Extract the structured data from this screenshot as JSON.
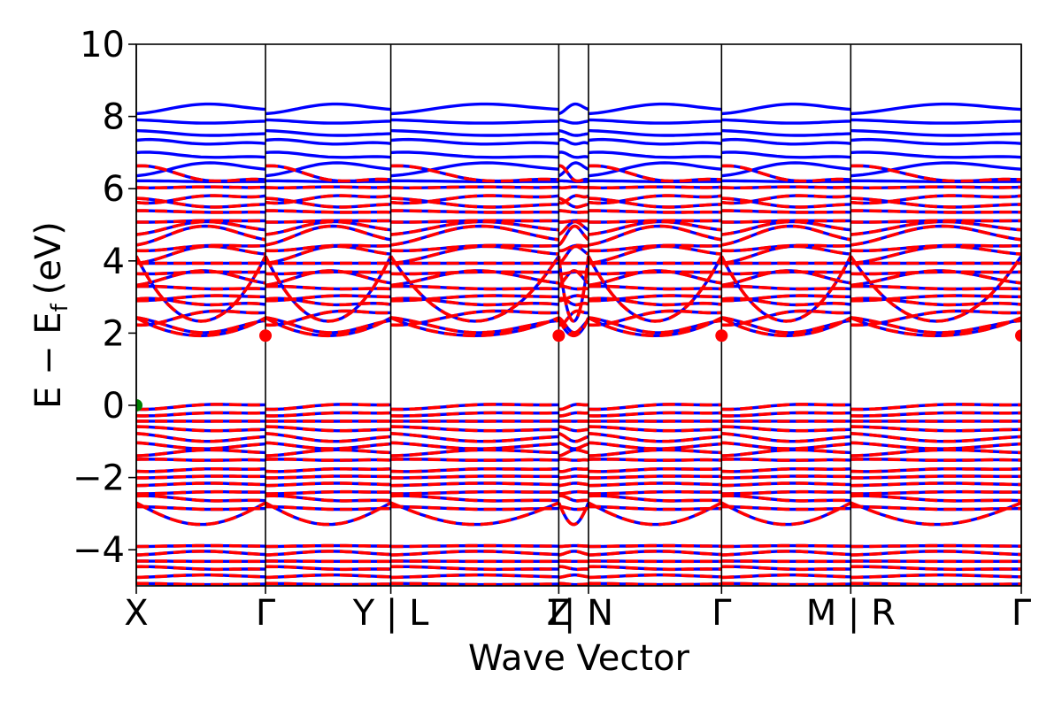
{
  "chart_data": {
    "type": "line",
    "title": "",
    "xlabel": "Wave Vector",
    "ylabel": "E − E",
    "ylabel_sub": "f",
    "ylabel_unit": "(eV)",
    "ylim": [
      -5,
      10
    ],
    "yticks": [
      -4,
      -2,
      0,
      2,
      4,
      6,
      8,
      10
    ],
    "ytick_labels": [
      "−4",
      "−2",
      "0",
      "2",
      "4",
      "6",
      "8",
      "10"
    ],
    "grid": false,
    "legend": "none",
    "xlim": [
      0,
      6.85
    ],
    "kpath_ticks": [
      {
        "x": 0.0,
        "label": "X"
      },
      {
        "x": 1.0,
        "label": "Γ"
      },
      {
        "x": 1.97,
        "label": "Y | L"
      },
      {
        "x": 3.27,
        "label": "Γ"
      },
      {
        "x": 3.27,
        "label": "Z"
      },
      {
        "x": 3.5,
        "label": "| N"
      },
      {
        "x": 4.53,
        "label": "Γ"
      },
      {
        "x": 5.53,
        "label": "M | R"
      },
      {
        "x": 6.85,
        "label": "Γ"
      }
    ],
    "segments": [
      [
        0,
        1
      ],
      [
        1,
        1.97
      ],
      [
        1.97,
        3.27
      ],
      [
        3.27,
        3.5
      ],
      [
        3.5,
        4.53
      ],
      [
        4.53,
        5.53
      ],
      [
        5.53,
        6.85
      ]
    ],
    "series_styles": [
      {
        "id": "spin-up",
        "color": "#0000ff",
        "style": "solid"
      },
      {
        "id": "spin-down",
        "color": "#ff0000",
        "style": "dashed"
      }
    ],
    "markers": [
      {
        "type": "cbm",
        "color": "#ff0000",
        "points": [
          [
            1.0,
            1.93
          ],
          [
            3.27,
            1.93
          ],
          [
            4.53,
            1.93
          ],
          [
            6.85,
            1.93
          ]
        ]
      },
      {
        "type": "vbm",
        "color": "#008000",
        "points": [
          [
            0.0,
            0.0
          ]
        ]
      }
    ],
    "band_energy_ranges": {
      "conduction_upper": [
        6.2,
        8.2
      ],
      "conduction": [
        1.93,
        7.1
      ],
      "valence": [
        -3.3,
        0.0
      ],
      "deep_valence": [
        -4.95,
        -3.9
      ]
    }
  }
}
